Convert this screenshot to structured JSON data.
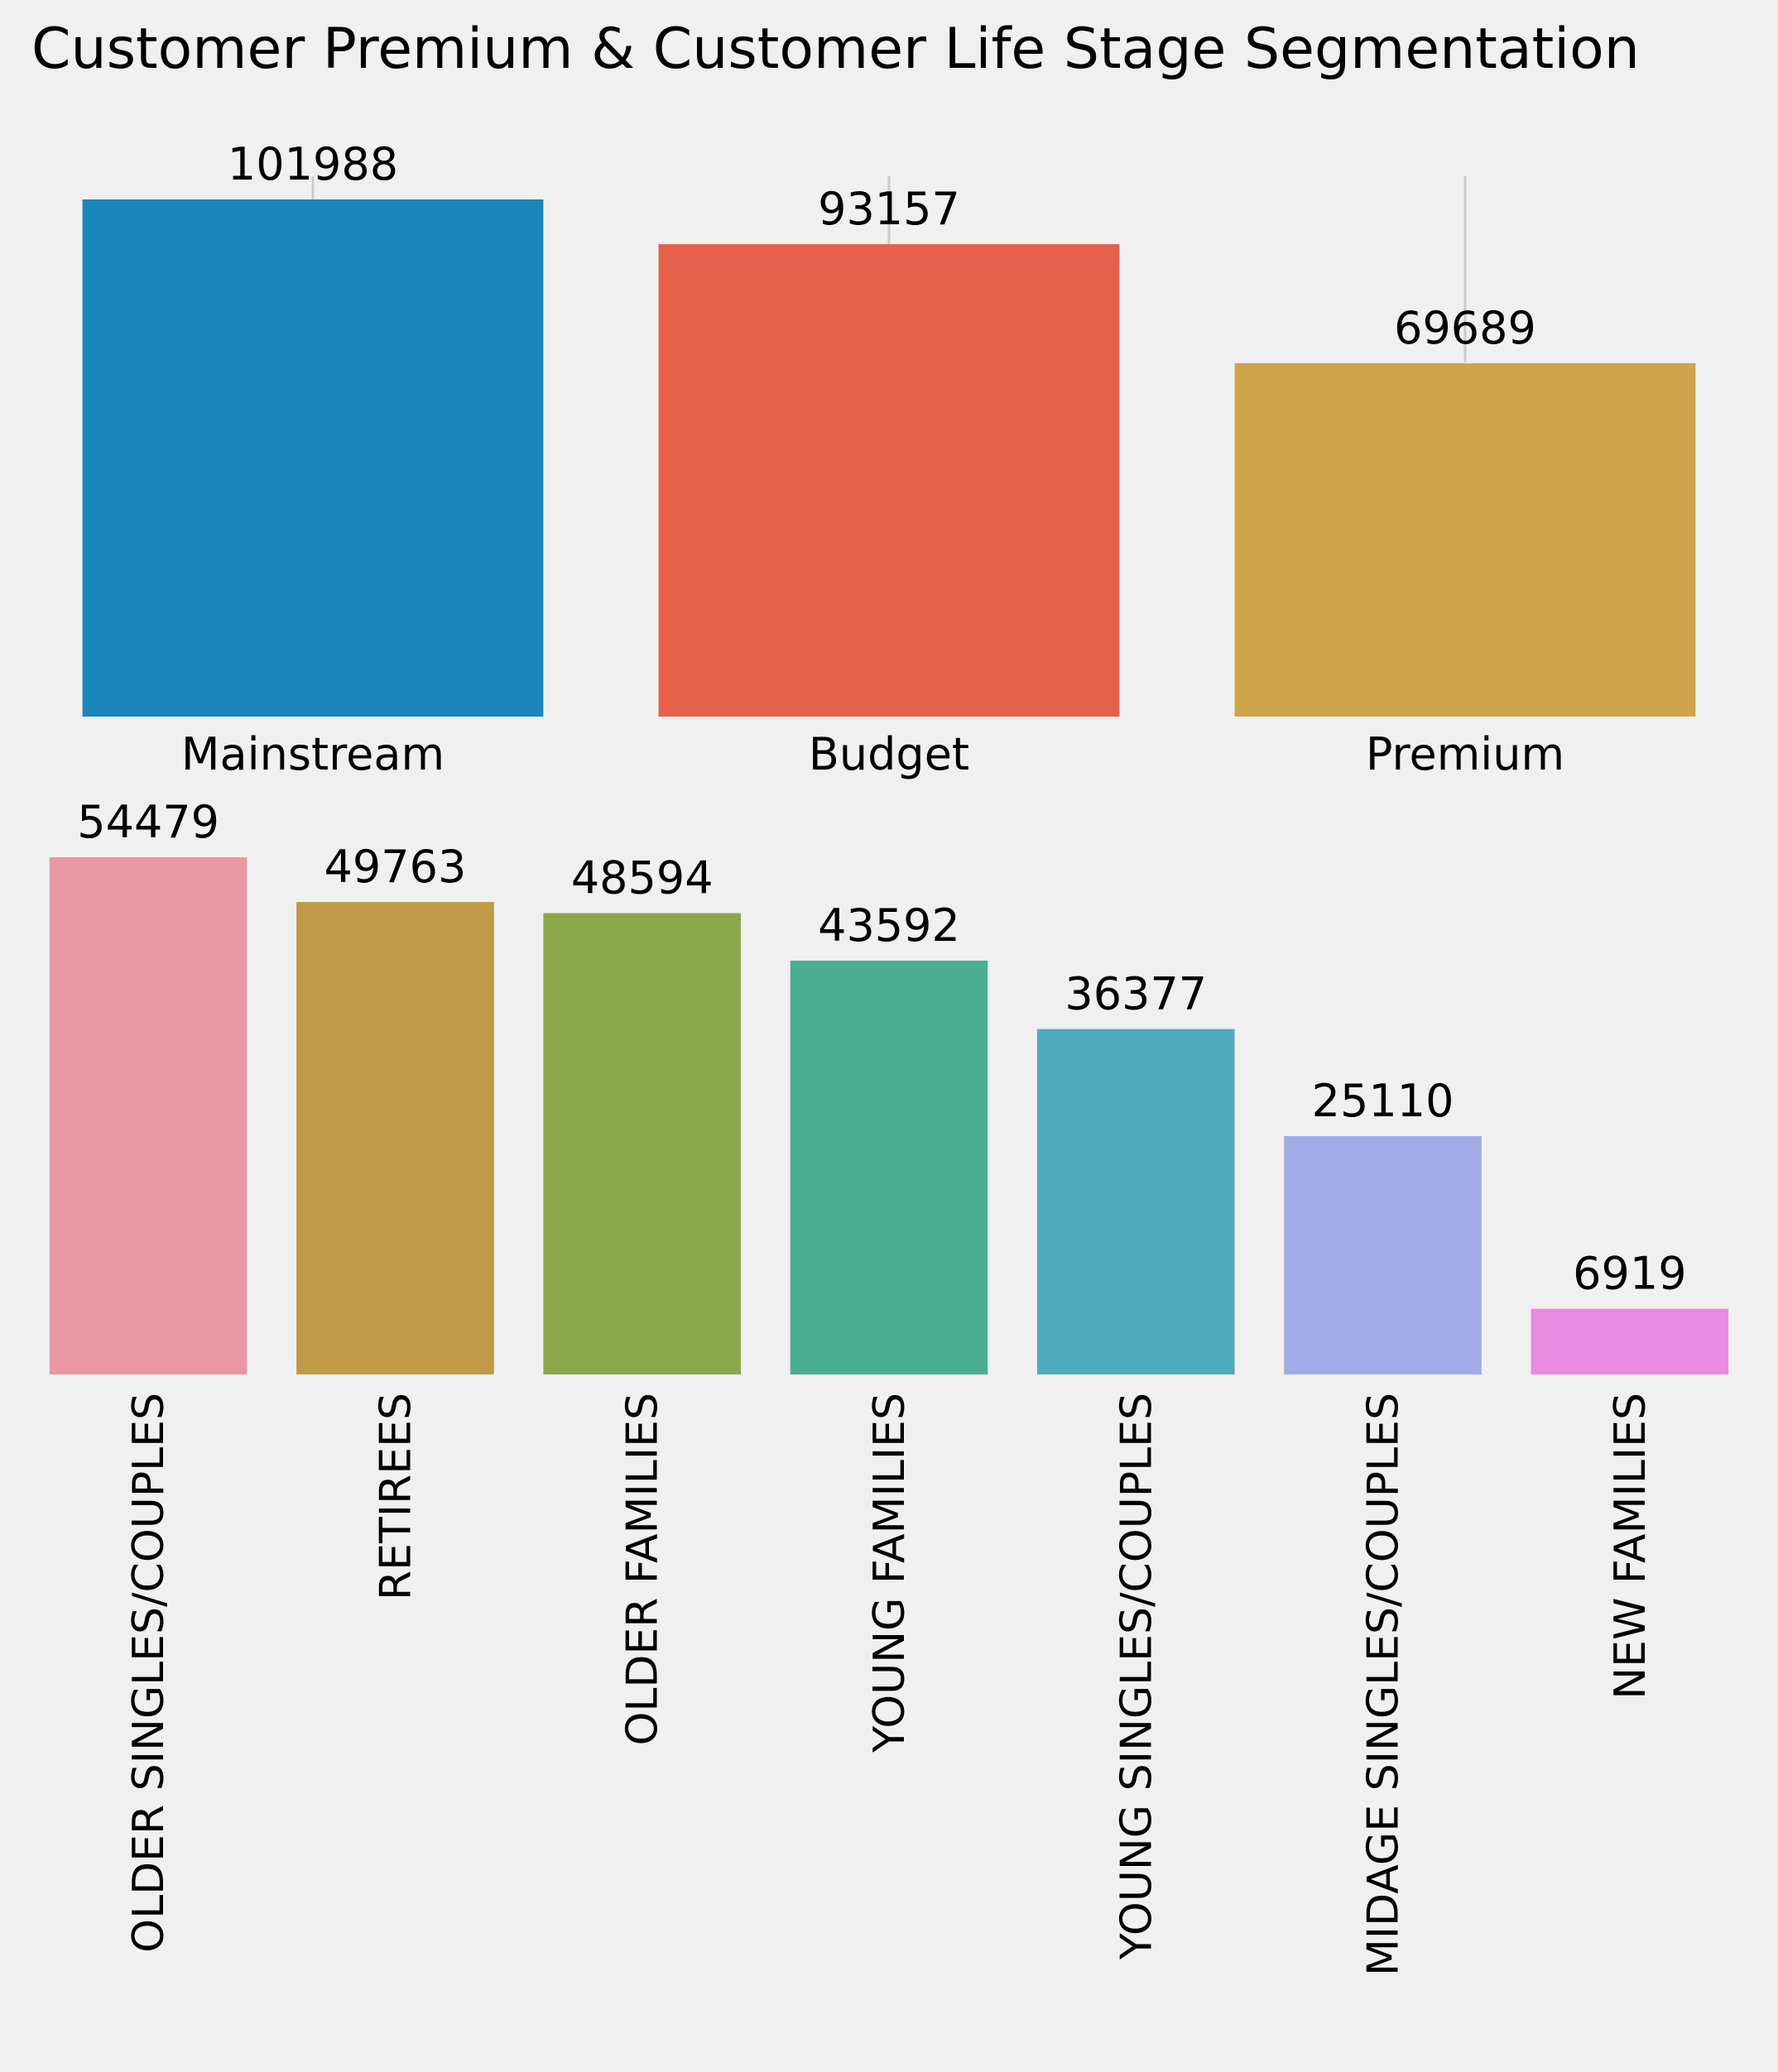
{
  "title": "Customer Premium & Customer Life Stage Segmentation",
  "chart_data": [
    {
      "type": "bar",
      "categories": [
        "Mainstream",
        "Budget",
        "Premium"
      ],
      "values": [
        101988,
        93157,
        69689
      ],
      "data_labels": [
        "101988",
        "93157",
        "69689"
      ],
      "colors": [
        "#1b86b9",
        "#e4604a",
        "#cea54c"
      ],
      "xlabel": "",
      "ylabel": "",
      "ylim": [
        0,
        101988
      ],
      "grid": "vertical lines only",
      "legend": "none"
    },
    {
      "type": "bar",
      "categories": [
        "OLDER SINGLES/COUPLES",
        "RETIREES",
        "OLDER FAMILIES",
        "YOUNG FAMILIES",
        "YOUNG SINGLES/COUPLES",
        "MIDAGE SINGLES/COUPLES",
        "NEW FAMILIES"
      ],
      "values": [
        54479,
        49763,
        48594,
        43592,
        36377,
        25110,
        6919
      ],
      "data_labels": [
        "54479",
        "49763",
        "48594",
        "43592",
        "36377",
        "25110",
        "6919"
      ],
      "colors": [
        "#e997a3",
        "#c09949",
        "#8aa84a",
        "#4bae91",
        "#4fabbb",
        "#a1abe8",
        "#e98be0"
      ],
      "xlabel": "",
      "ylabel": "",
      "ylim": [
        0,
        54479
      ],
      "grid": "off",
      "legend": "none",
      "tick_label_rotation": "vertical"
    }
  ]
}
